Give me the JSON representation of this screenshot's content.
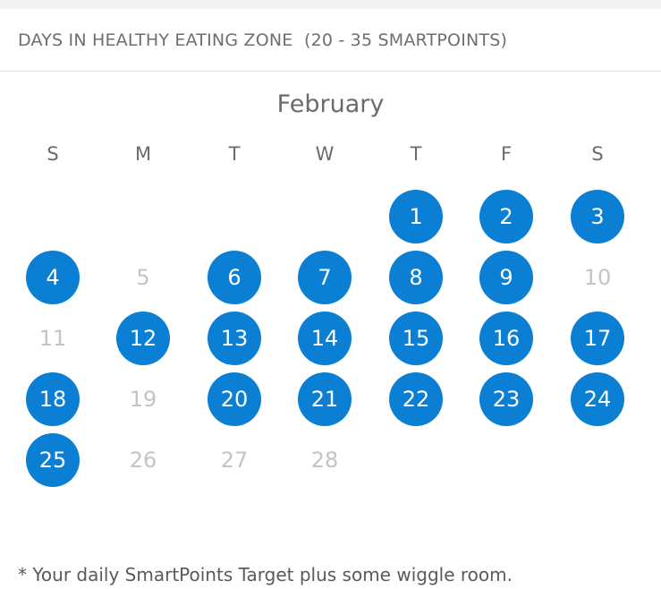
{
  "header": {
    "title": "DAYS IN HEALTHY EATING ZONE  (20 - 35 SMARTPOINTS)"
  },
  "calendar": {
    "month": "February",
    "weekdays": [
      "S",
      "M",
      "T",
      "W",
      "T",
      "F",
      "S"
    ],
    "start_weekday_index": 4,
    "days": [
      {
        "label": "1",
        "in_zone": true
      },
      {
        "label": "2",
        "in_zone": true
      },
      {
        "label": "3",
        "in_zone": true
      },
      {
        "label": "4",
        "in_zone": true
      },
      {
        "label": "5",
        "in_zone": false
      },
      {
        "label": "6",
        "in_zone": true
      },
      {
        "label": "7",
        "in_zone": true
      },
      {
        "label": "8",
        "in_zone": true
      },
      {
        "label": "9",
        "in_zone": true
      },
      {
        "label": "10",
        "in_zone": false
      },
      {
        "label": "11",
        "in_zone": false
      },
      {
        "label": "12",
        "in_zone": true
      },
      {
        "label": "13",
        "in_zone": true
      },
      {
        "label": "14",
        "in_zone": true
      },
      {
        "label": "15",
        "in_zone": true
      },
      {
        "label": "16",
        "in_zone": true
      },
      {
        "label": "17",
        "in_zone": true
      },
      {
        "label": "18",
        "in_zone": true
      },
      {
        "label": "19",
        "in_zone": false
      },
      {
        "label": "20",
        "in_zone": true
      },
      {
        "label": "21",
        "in_zone": true
      },
      {
        "label": "22",
        "in_zone": true
      },
      {
        "label": "23",
        "in_zone": true
      },
      {
        "label": "24",
        "in_zone": true
      },
      {
        "label": "25",
        "in_zone": true
      },
      {
        "label": "26",
        "in_zone": false
      },
      {
        "label": "27",
        "in_zone": false
      },
      {
        "label": "28",
        "in_zone": false
      }
    ]
  },
  "footnote": "* Your daily SmartPoints Target plus some wiggle room.",
  "colors": {
    "in_zone": "#0a7fd4",
    "out_zone_text": "#c4c4c4"
  }
}
